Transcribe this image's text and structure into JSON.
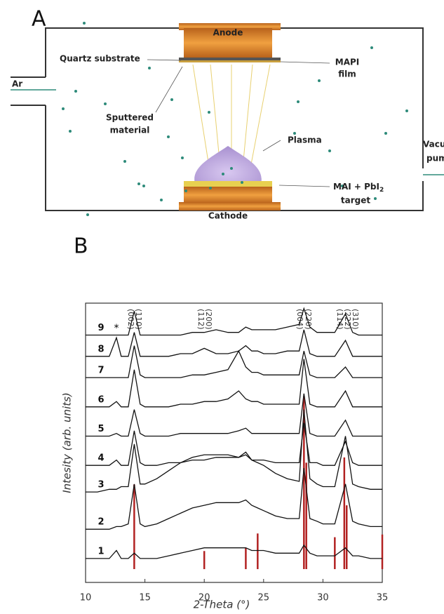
{
  "panel_a": {
    "label": "A",
    "anode": "Anode",
    "cathode": "Cathode",
    "quartz": "Quartz substrate",
    "film": [
      "MAPI",
      "film"
    ],
    "sputtered": [
      "Sputtered",
      "material"
    ],
    "plasma": "Plasma",
    "target": [
      "MAI + PbI",
      "2",
      "target"
    ],
    "gas": "Ar",
    "pump": [
      "Vacuum",
      "pump"
    ]
  },
  "chart_data": {
    "type": "line",
    "panel": "B",
    "xlabel": "2-Theta (°)",
    "ylabel": "Intesity (arb. units)",
    "xlim": [
      10,
      35
    ],
    "xticks": [
      10,
      15,
      20,
      25,
      30,
      35
    ],
    "ylim": [
      -5,
      100
    ],
    "peak_labels": [
      [
        "(002)",
        "(110)"
      ],
      [
        "(112)",
        "(200)"
      ],
      [
        "(004)",
        "(220)"
      ],
      [
        "(114)",
        "(222)",
        "(310)"
      ]
    ],
    "marker_label": "*",
    "x": [
      10,
      11,
      12,
      12.6,
      13,
      13.6,
      14.1,
      14.6,
      15,
      16,
      17,
      18,
      19,
      20,
      21,
      22,
      22.9,
      23.5,
      24,
      24.5,
      25,
      26,
      27,
      28,
      28.4,
      28.9,
      29.5,
      30,
      31,
      31.9,
      32.5,
      33,
      34,
      35
    ],
    "series": [
      {
        "name": "1",
        "color": "#111111",
        "values": [
          4,
          4,
          4,
          7,
          4,
          4,
          6,
          4,
          4,
          4,
          5,
          6,
          7,
          8,
          8,
          8,
          8,
          8,
          7,
          7,
          7,
          6,
          6,
          6,
          9,
          6,
          5,
          5,
          5,
          8,
          5,
          5,
          4,
          4
        ]
      },
      {
        "name": "2",
        "color": "#111111",
        "values": [
          15,
          15,
          15,
          16,
          16,
          17,
          32,
          17,
          16,
          17,
          19,
          21,
          23,
          24,
          25,
          25,
          25,
          26,
          24,
          23,
          22,
          20,
          19,
          19,
          38,
          19,
          18,
          17,
          17,
          32,
          18,
          17,
          16,
          16
        ]
      },
      {
        "name": "3",
        "color": "#111111",
        "values": [
          29,
          29,
          30,
          30,
          31,
          31,
          47,
          32,
          32,
          34,
          37,
          40,
          42,
          43,
          43,
          43,
          42,
          44,
          41,
          40,
          39,
          36,
          34,
          33,
          60,
          34,
          32,
          31,
          31,
          50,
          32,
          31,
          30,
          30
        ]
      },
      {
        "name": "4",
        "color": "#111111",
        "values": [
          39,
          39,
          39,
          41,
          39,
          39,
          52,
          40,
          39,
          39,
          40,
          40,
          41,
          41,
          42,
          42,
          42,
          43,
          41,
          41,
          41,
          40,
          40,
          40,
          55,
          40,
          40,
          39,
          39,
          48,
          40,
          39,
          39,
          39
        ]
      },
      {
        "name": "5",
        "color": "#111111",
        "values": [
          50,
          50,
          50,
          51,
          50,
          50,
          60,
          51,
          50,
          50,
          50,
          51,
          51,
          51,
          51,
          51,
          52,
          53,
          51,
          51,
          51,
          51,
          51,
          51,
          66,
          51,
          50,
          50,
          50,
          56,
          50,
          50,
          50,
          50
        ]
      },
      {
        "name": "6",
        "color": "#111111",
        "values": [
          61,
          61,
          61,
          63,
          61,
          61,
          75,
          62,
          61,
          61,
          61,
          62,
          62,
          63,
          63,
          64,
          67,
          64,
          63,
          63,
          62,
          62,
          62,
          62,
          79,
          62,
          61,
          61,
          61,
          67,
          61,
          61,
          61,
          61
        ]
      },
      {
        "name": "7",
        "color": "#111111",
        "values": [
          72,
          72,
          72,
          72,
          72,
          72,
          84,
          73,
          72,
          72,
          72,
          72,
          73,
          73,
          74,
          75,
          82,
          76,
          74,
          74,
          73,
          73,
          73,
          73,
          82,
          73,
          72,
          72,
          72,
          76,
          72,
          72,
          72,
          72
        ]
      },
      {
        "name": "8",
        "color": "#111111",
        "values": [
          80,
          80,
          80,
          87,
          80,
          80,
          89,
          80,
          80,
          80,
          80,
          81,
          81,
          83,
          81,
          81,
          82,
          84,
          82,
          82,
          81,
          81,
          82,
          82,
          90,
          81,
          80,
          80,
          80,
          86,
          80,
          80,
          80,
          80
        ]
      },
      {
        "name": "9",
        "color": "#111111",
        "values": [
          88,
          88,
          88,
          88,
          88,
          88,
          97,
          88,
          88,
          88,
          88,
          88,
          89,
          89,
          90,
          89,
          89,
          91,
          90,
          90,
          90,
          90,
          91,
          92,
          98,
          91,
          89,
          89,
          89,
          96,
          89,
          88,
          88,
          88
        ]
      }
    ],
    "reference_color": "#b22222",
    "reference_x": [
      14.1,
      20,
      23.5,
      24.5,
      28.4,
      28.6,
      31,
      31.8,
      32,
      35
    ],
    "reference_heights": [
      31.8,
      6.8,
      8,
      13.4,
      65,
      40,
      12,
      42,
      24,
      13
    ]
  }
}
